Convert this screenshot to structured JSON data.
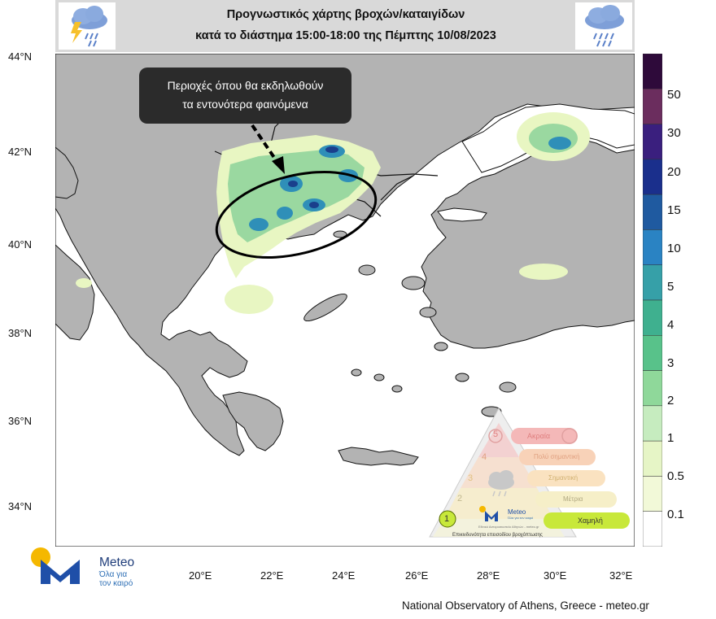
{
  "header": {
    "title_line1": "Προγνωστικός χάρτης βροχών/καταιγίδων",
    "title_line2": "κατά το διάστημα 15:00-18:00 της Πέμπτης 10/08/2023",
    "left_icon": "thunderstorm-rain-icon",
    "right_icon": "rain-cloud-icon"
  },
  "map": {
    "lat_labels": [
      "44°N",
      "42°N",
      "40°N",
      "38°N",
      "36°N",
      "34°N"
    ],
    "lon_labels": [
      "20°E",
      "22°E",
      "24°E",
      "26°E",
      "28°E",
      "30°E",
      "32°E"
    ],
    "land_color": "#b0b0b0",
    "sea_color": "#ffffff"
  },
  "callout": {
    "line1": "Περιοχές όπου θα εκδηλωθούν",
    "line2": "τα εντονότερα φαινόμενα"
  },
  "colorbar": {
    "labels": [
      "50",
      "30",
      "20",
      "15",
      "10",
      "5",
      "4",
      "3",
      "2",
      "1",
      "0.5",
      "0.1"
    ],
    "colors": [
      "#2e0a3a",
      "#6b2d5e",
      "#3a1f7e",
      "#1a2f8c",
      "#1f5aa0",
      "#2a83c3",
      "#36a0a8",
      "#3fb08f",
      "#58c28a",
      "#8fd89a",
      "#c6ecbf",
      "#e6f5c6",
      "#f2f9d8",
      "#ffffff"
    ]
  },
  "hazard_triangle": {
    "levels": [
      {
        "num": "5",
        "label": "Ακραία",
        "color": "#f4b8b8"
      },
      {
        "num": "4",
        "label": "Πολύ σημαντική",
        "color": "#f8d2b8"
      },
      {
        "num": "3",
        "label": "Σημαντική",
        "color": "#fae2c0"
      },
      {
        "num": "2",
        "label": "Μέτρια",
        "color": "#f6efc8"
      },
      {
        "num": "1",
        "label": "Χαμηλή",
        "color": "#c8e83a"
      }
    ],
    "brand": "Meteo",
    "brand_sub": "Όλα για τον καιρό",
    "small_text": "Εθνικό Αστεροσκοπείο Αθηνών - meteo.gr",
    "caption": "Επικινδυνότητα επεισοδίου βροχόπτωσης"
  },
  "logo": {
    "brand": "Meteo",
    "tagline_line1": "Όλα για",
    "tagline_line2": "τον καιρό",
    "colors": {
      "sun": "#f5b800",
      "m": "#1f4fa8"
    }
  },
  "footer": "National Observatory of Athens, Greece - meteo.gr"
}
